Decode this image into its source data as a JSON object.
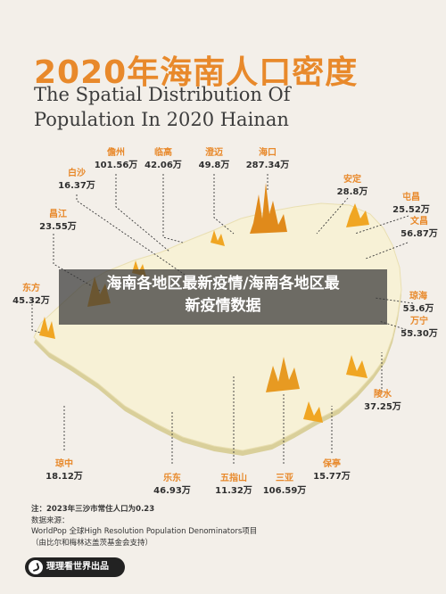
{
  "title_cn": "2020年海南人口密度",
  "title_en": "The Spatial Distribution Of Population In 2020 Hainan",
  "cities": [
    {
      "id": "danzhou",
      "name": "儋州",
      "pop": "101.56万"
    },
    {
      "id": "lingao",
      "name": "临高",
      "pop": "42.06万"
    },
    {
      "id": "chengmai",
      "name": "澄迈",
      "pop": "49.8万"
    },
    {
      "id": "haikou",
      "name": "海口",
      "pop": "287.34万"
    },
    {
      "id": "baisha",
      "name": "白沙",
      "pop": "16.37万"
    },
    {
      "id": "ding_an",
      "name": "安定",
      "pop": "28.8万"
    },
    {
      "id": "tunchang",
      "name": "屯昌",
      "pop": "25.52万"
    },
    {
      "id": "changjiang",
      "name": "昌江",
      "pop": "23.55万"
    },
    {
      "id": "wenchang",
      "name": "文昌",
      "pop": "56.87万"
    },
    {
      "id": "dongfang",
      "name": "东方",
      "pop": "45.32万"
    },
    {
      "id": "qionghai",
      "name": "琼海",
      "pop": "53.6万"
    },
    {
      "id": "wanning",
      "name": "万宁",
      "pop": "55.30万"
    },
    {
      "id": "lingshui",
      "name": "陵水",
      "pop": "37.25万"
    },
    {
      "id": "qiongzhong",
      "name": "琼中",
      "pop": "18.12万"
    },
    {
      "id": "ledong",
      "name": "乐东",
      "pop": "46.93万"
    },
    {
      "id": "wuzhishan",
      "name": "五指山",
      "pop": "11.32万"
    },
    {
      "id": "sanya",
      "name": "三亚",
      "pop": "106.59万"
    },
    {
      "id": "baoting",
      "name": "保亭",
      "pop": "15.77万"
    }
  ],
  "banner": {
    "line1": "海南各地区最新疫情/海南各地区最",
    "line2": "新疫情数据"
  },
  "notes": [
    "注：2023年三沙市常住人口为0.23",
    "数据来源：",
    "WorldPop 全球High Resolution Population Denominators项目",
    "（由比尔和梅林达盖茨基金会支持）"
  ],
  "brand": "理理看世界出品",
  "colors": {
    "accent": "#e8892b",
    "map_fill": "#f7f1d6",
    "spike": "#f0a623"
  }
}
